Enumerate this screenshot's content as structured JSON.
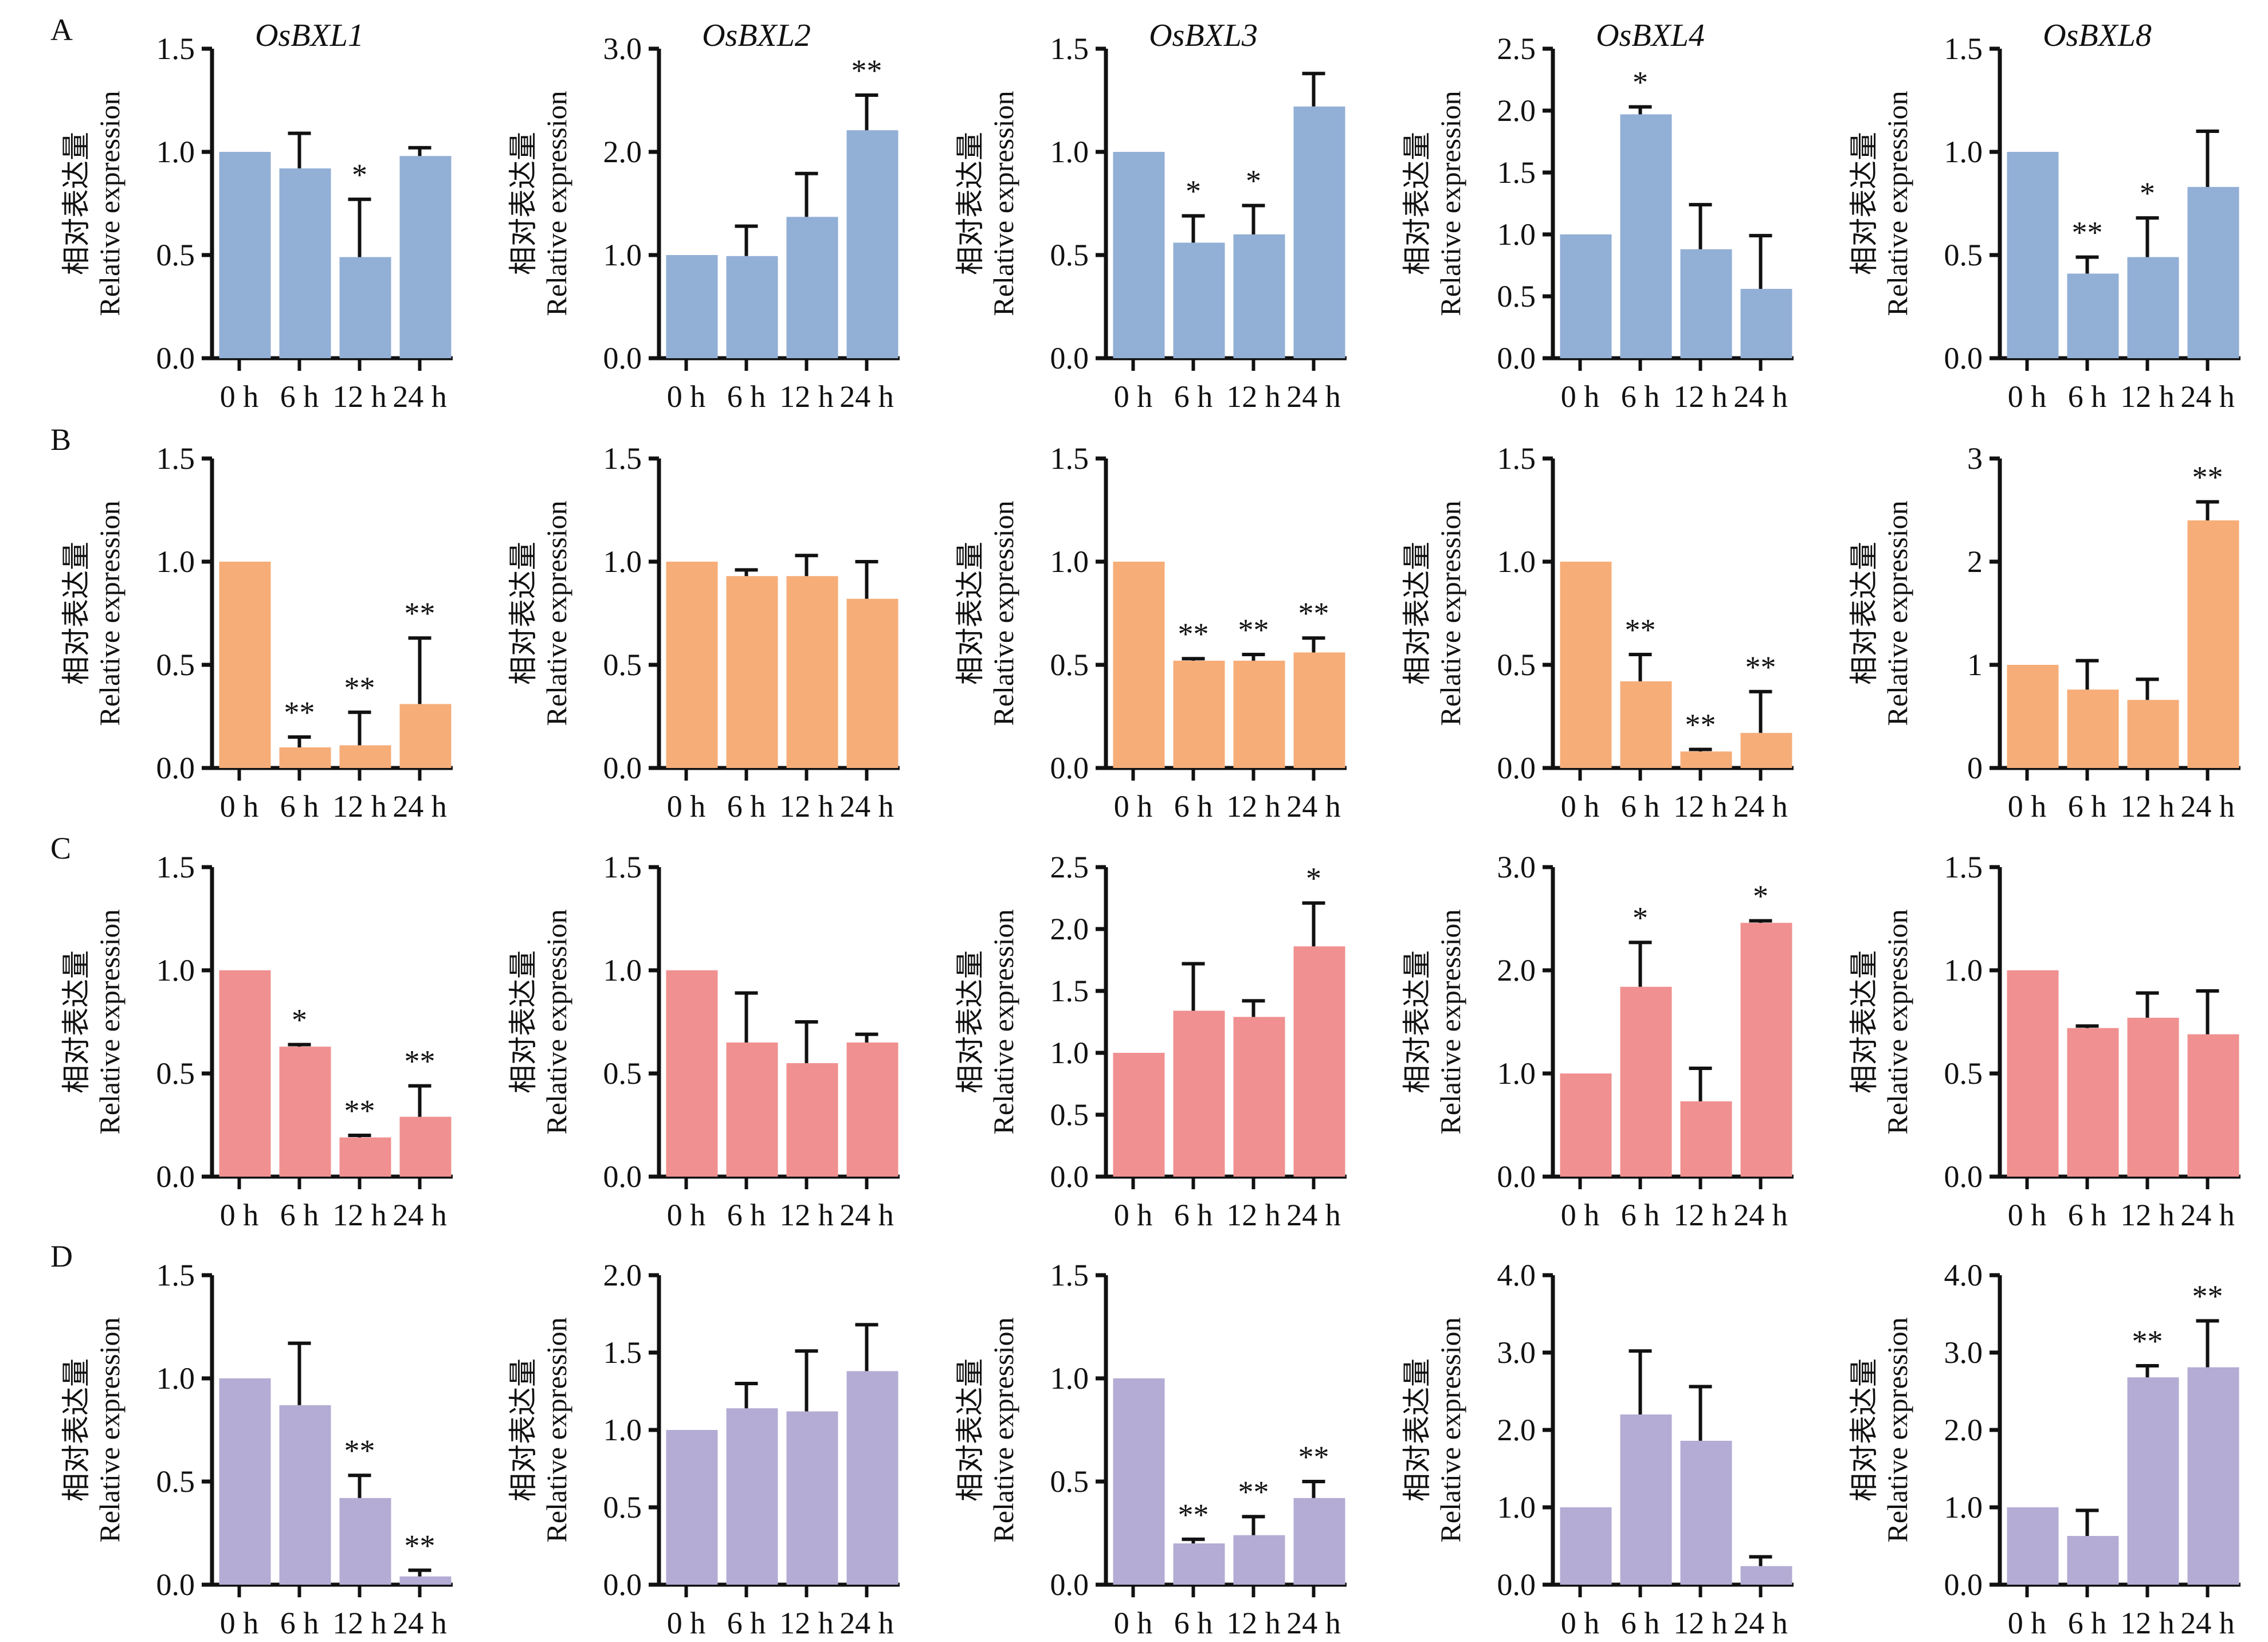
{
  "chart_data": {
    "type": "bar",
    "categories": [
      "0 h",
      "6 h",
      "12 h",
      "24 h"
    ],
    "ylabel_cn": "相对表达量",
    "ylabel": "Relative expression",
    "genes": [
      "OsBXL1",
      "OsBXL2",
      "OsBXL3",
      "OsBXL4",
      "OsBXL8"
    ],
    "rows": [
      {
        "label": "A",
        "color": "#92afd6",
        "panels": [
          {
            "ylim": [
              0,
              1.5
            ],
            "ticks": [
              "0.0",
              "0.5",
              "1.0",
              "1.5"
            ],
            "values": [
              1.0,
              0.92,
              0.49,
              0.98
            ],
            "errors": [
              0,
              0.17,
              0.28,
              0.04
            ],
            "sig": [
              "",
              "",
              "*",
              ""
            ]
          },
          {
            "ylim": [
              0,
              3
            ],
            "ticks": [
              "0.0",
              "1.0",
              "2.0",
              "3.0"
            ],
            "values": [
              1.0,
              0.99,
              1.37,
              2.21
            ],
            "errors": [
              0,
              0.29,
              0.42,
              0.34
            ],
            "sig": [
              "",
              "",
              "",
              "**"
            ]
          },
          {
            "ylim": [
              0,
              1.5
            ],
            "ticks": [
              "0.0",
              "0.5",
              "1.0",
              "1.5"
            ],
            "values": [
              1.0,
              0.56,
              0.6,
              1.22
            ],
            "errors": [
              0,
              0.13,
              0.14,
              0.16
            ],
            "sig": [
              "",
              "*",
              "*",
              ""
            ]
          },
          {
            "ylim": [
              0,
              2.5
            ],
            "ticks": [
              "0.0",
              "0.5",
              "1.0",
              "1.5",
              "2.0",
              "2.5"
            ],
            "values": [
              1.0,
              1.97,
              0.88,
              0.56
            ],
            "errors": [
              0,
              0.06,
              0.36,
              0.43
            ],
            "sig": [
              "",
              "*",
              "",
              ""
            ]
          },
          {
            "ylim": [
              0,
              1.5
            ],
            "ticks": [
              "0.0",
              "0.5",
              "1.0",
              "1.5"
            ],
            "values": [
              1.0,
              0.41,
              0.49,
              0.83
            ],
            "errors": [
              0,
              0.08,
              0.19,
              0.27
            ],
            "sig": [
              "",
              "**",
              "*",
              ""
            ]
          }
        ]
      },
      {
        "label": "B",
        "color": "#f6ad78",
        "panels": [
          {
            "ylim": [
              0,
              1.5
            ],
            "ticks": [
              "0.0",
              "0.5",
              "1.0",
              "1.5"
            ],
            "values": [
              1.0,
              0.1,
              0.11,
              0.31
            ],
            "errors": [
              0,
              0.05,
              0.16,
              0.32
            ],
            "sig": [
              "",
              "**",
              "**",
              "**"
            ]
          },
          {
            "ylim": [
              0,
              1.5
            ],
            "ticks": [
              "0.0",
              "0.5",
              "1.0",
              "1.5"
            ],
            "values": [
              1.0,
              0.93,
              0.93,
              0.82
            ],
            "errors": [
              0,
              0.03,
              0.1,
              0.18
            ],
            "sig": [
              "",
              "",
              "",
              ""
            ]
          },
          {
            "ylim": [
              0,
              1.5
            ],
            "ticks": [
              "0.0",
              "0.5",
              "1.0",
              "1.5"
            ],
            "values": [
              1.0,
              0.52,
              0.52,
              0.56
            ],
            "errors": [
              0,
              0.01,
              0.03,
              0.07
            ],
            "sig": [
              "",
              "**",
              "**",
              "**"
            ]
          },
          {
            "ylim": [
              0,
              1.5
            ],
            "ticks": [
              "0.0",
              "0.5",
              "1.0",
              "1.5"
            ],
            "values": [
              1.0,
              0.42,
              0.08,
              0.17
            ],
            "errors": [
              0,
              0.13,
              0.01,
              0.2
            ],
            "sig": [
              "",
              "**",
              "**",
              "**"
            ]
          },
          {
            "ylim": [
              0,
              3
            ],
            "ticks": [
              "0",
              "1",
              "2",
              "3"
            ],
            "values": [
              1.0,
              0.76,
              0.66,
              2.4
            ],
            "errors": [
              0,
              0.28,
              0.2,
              0.18
            ],
            "sig": [
              "",
              "",
              "",
              "**"
            ]
          }
        ]
      },
      {
        "label": "C",
        "color": "#f09090",
        "panels": [
          {
            "ylim": [
              0,
              1.5
            ],
            "ticks": [
              "0.0",
              "0.5",
              "1.0",
              "1.5"
            ],
            "values": [
              1.0,
              0.63,
              0.19,
              0.29
            ],
            "errors": [
              0,
              0.01,
              0.01,
              0.15
            ],
            "sig": [
              "",
              "*",
              "**",
              "**"
            ]
          },
          {
            "ylim": [
              0,
              1.5
            ],
            "ticks": [
              "0.0",
              "0.5",
              "1.0",
              "1.5"
            ],
            "values": [
              1.0,
              0.65,
              0.55,
              0.65
            ],
            "errors": [
              0,
              0.24,
              0.2,
              0.04
            ],
            "sig": [
              "",
              "",
              "",
              ""
            ]
          },
          {
            "ylim": [
              0,
              2.5
            ],
            "ticks": [
              "0.0",
              "0.5",
              "1.0",
              "1.5",
              "2.0",
              "2.5"
            ],
            "values": [
              1.0,
              1.34,
              1.29,
              1.86
            ],
            "errors": [
              0,
              0.38,
              0.13,
              0.35
            ],
            "sig": [
              "",
              "",
              "",
              "*"
            ]
          },
          {
            "ylim": [
              0,
              3
            ],
            "ticks": [
              "0.0",
              "1.0",
              "2.0",
              "3.0"
            ],
            "values": [
              1.0,
              1.84,
              0.73,
              2.46
            ],
            "errors": [
              0,
              0.43,
              0.32,
              0.02
            ],
            "sig": [
              "",
              "*",
              "",
              "*"
            ]
          },
          {
            "ylim": [
              0,
              1.5
            ],
            "ticks": [
              "0.0",
              "0.5",
              "1.0",
              "1.5"
            ],
            "values": [
              1.0,
              0.72,
              0.77,
              0.69
            ],
            "errors": [
              0,
              0.01,
              0.12,
              0.21
            ],
            "sig": [
              "",
              "",
              "",
              ""
            ]
          }
        ]
      },
      {
        "label": "D",
        "color": "#b4acd4",
        "panels": [
          {
            "ylim": [
              0,
              1.5
            ],
            "ticks": [
              "0.0",
              "0.5",
              "1.0",
              "1.5"
            ],
            "values": [
              1.0,
              0.87,
              0.42,
              0.04
            ],
            "errors": [
              0,
              0.3,
              0.11,
              0.03
            ],
            "sig": [
              "",
              "",
              "**",
              "**"
            ]
          },
          {
            "ylim": [
              0,
              2
            ],
            "ticks": [
              "0.0",
              "0.5",
              "1.0",
              "1.5",
              "2.0"
            ],
            "values": [
              1.0,
              1.14,
              1.12,
              1.38
            ],
            "errors": [
              0,
              0.16,
              0.39,
              0.3
            ],
            "sig": [
              "",
              "",
              "",
              ""
            ]
          },
          {
            "ylim": [
              0,
              1.5
            ],
            "ticks": [
              "0.0",
              "0.5",
              "1.0",
              "1.5"
            ],
            "values": [
              1.0,
              0.2,
              0.24,
              0.42
            ],
            "errors": [
              0,
              0.02,
              0.09,
              0.08
            ],
            "sig": [
              "",
              "**",
              "**",
              "**"
            ]
          },
          {
            "ylim": [
              0,
              4
            ],
            "ticks": [
              "0.0",
              "1.0",
              "2.0",
              "3.0",
              "4.0"
            ],
            "values": [
              1.0,
              2.2,
              1.86,
              0.24
            ],
            "errors": [
              0,
              0.82,
              0.7,
              0.12
            ],
            "sig": [
              "",
              "",
              "",
              ""
            ]
          },
          {
            "ylim": [
              0,
              4
            ],
            "ticks": [
              "0.0",
              "1.0",
              "2.0",
              "3.0",
              "4.0"
            ],
            "values": [
              1.0,
              0.63,
              2.68,
              2.81
            ],
            "errors": [
              0,
              0.33,
              0.15,
              0.6
            ],
            "sig": [
              "",
              "",
              "**",
              "**"
            ]
          }
        ]
      }
    ]
  }
}
